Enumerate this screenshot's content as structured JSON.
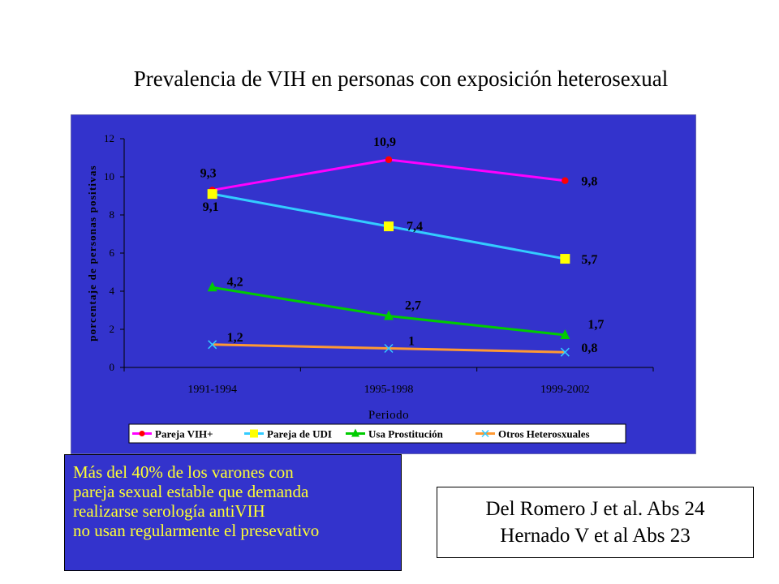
{
  "title": "Prevalencia de VIH en personas con exposición heterosexual",
  "note": {
    "lines": [
      "Más del 40% de los varones con",
      "pareja sexual estable que demanda",
      "realizarse serología antiVIH",
      "no usan regularmente el presevativo"
    ]
  },
  "references": {
    "lines": [
      "Del Romero J et al. Abs 24",
      "Hernado V et al Abs 23"
    ]
  },
  "chart_data": {
    "type": "line",
    "title": "",
    "xlabel": "Periodo",
    "ylabel": "porcentaje de personas positivas",
    "categories": [
      "1991-1994",
      "1995-1998",
      "1999-2002"
    ],
    "ylim": [
      0,
      12
    ],
    "yticks": [
      0,
      2,
      4,
      6,
      8,
      10,
      12
    ],
    "grid": false,
    "legend_position": "bottom",
    "background_color": "#3333cc",
    "series": [
      {
        "name": "Pareja VIH+",
        "values": [
          9.3,
          10.9,
          9.8
        ],
        "labels": [
          "9,3",
          "10,9",
          "9,8"
        ],
        "color": "#ff00ff",
        "marker": "circle",
        "marker_color": "#ff0000"
      },
      {
        "name": "Pareja de UDI",
        "values": [
          9.1,
          7.4,
          5.7
        ],
        "labels": [
          "9,1",
          "7,4",
          "5,7"
        ],
        "color": "#33ccff",
        "marker": "square",
        "marker_color": "#ffff00"
      },
      {
        "name": "Usa Prostitución",
        "values": [
          4.2,
          2.7,
          1.7
        ],
        "labels": [
          "4,2",
          "2,7",
          "1,7"
        ],
        "color": "#00cc00",
        "marker": "triangle",
        "marker_color": "#00cc00"
      },
      {
        "name": "Otros Heterosxuales",
        "values": [
          1.2,
          1,
          0.8
        ],
        "labels": [
          "1,2",
          "1",
          "0,8"
        ],
        "color": "#ff9933",
        "marker": "x",
        "marker_color": "#33ccff"
      }
    ]
  }
}
